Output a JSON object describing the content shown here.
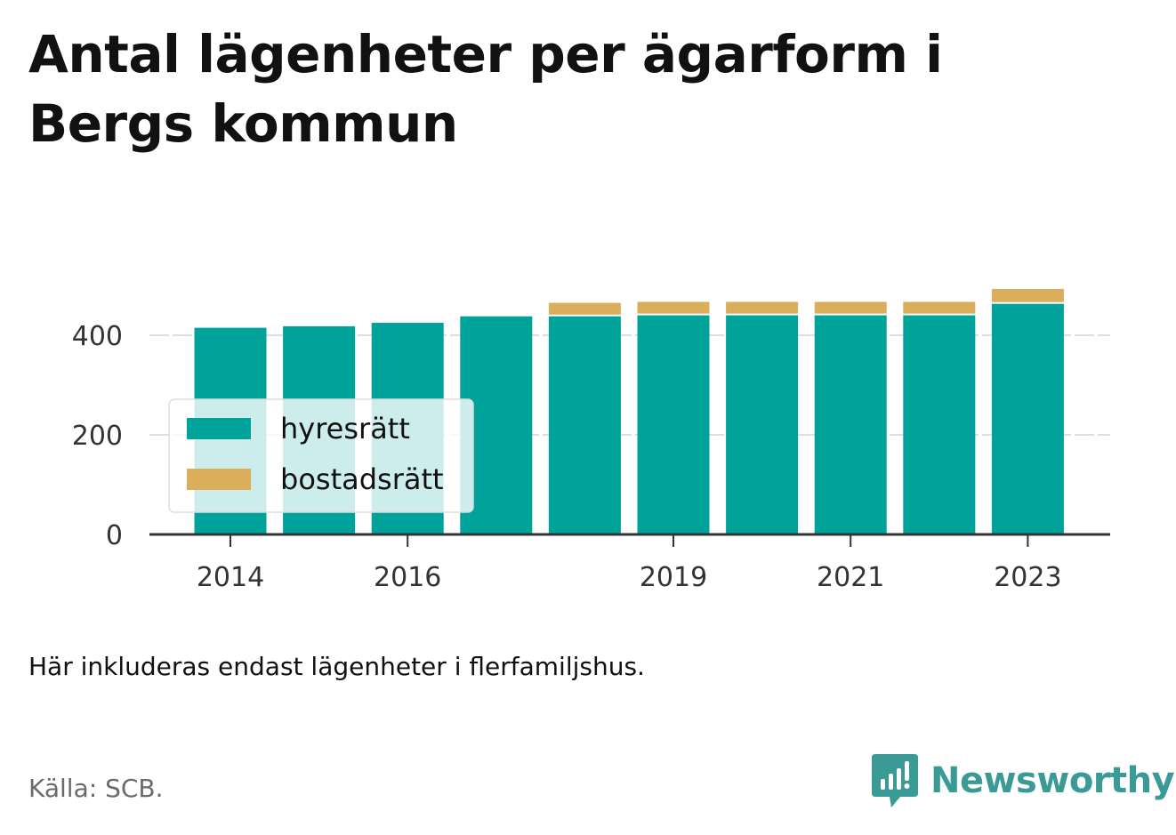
{
  "title": "Antal lägenheter per ägarform i Bergs kommun",
  "note": "Här inkluderas endast lägenheter i flerfamiljshus.",
  "source": "Källa: SCB.",
  "brand": {
    "name": "Newsworthy",
    "icon": "newsworthy-logo-icon",
    "color": "#3a9b96"
  },
  "chart_data": {
    "type": "bar",
    "stacked": true,
    "x": [
      2014,
      2015,
      2016,
      2017,
      2018,
      2019,
      2020,
      2021,
      2022,
      2023
    ],
    "x_tick_labels": [
      "2014",
      "2016",
      "2019",
      "2021",
      "2023"
    ],
    "series": [
      {
        "name": "hyresrätt",
        "color": "#00a39a",
        "values": [
          415,
          418,
          425,
          438,
          438,
          440,
          440,
          440,
          440,
          463
        ]
      },
      {
        "name": "bostadsrätt",
        "color": "#dbae5b",
        "values": [
          0,
          0,
          0,
          0,
          27,
          27,
          27,
          27,
          27,
          30
        ]
      }
    ],
    "y_ticks": [
      0,
      200,
      400
    ],
    "ylim": [
      0,
      520
    ],
    "grid": true,
    "legend_position": "bottom-left"
  }
}
